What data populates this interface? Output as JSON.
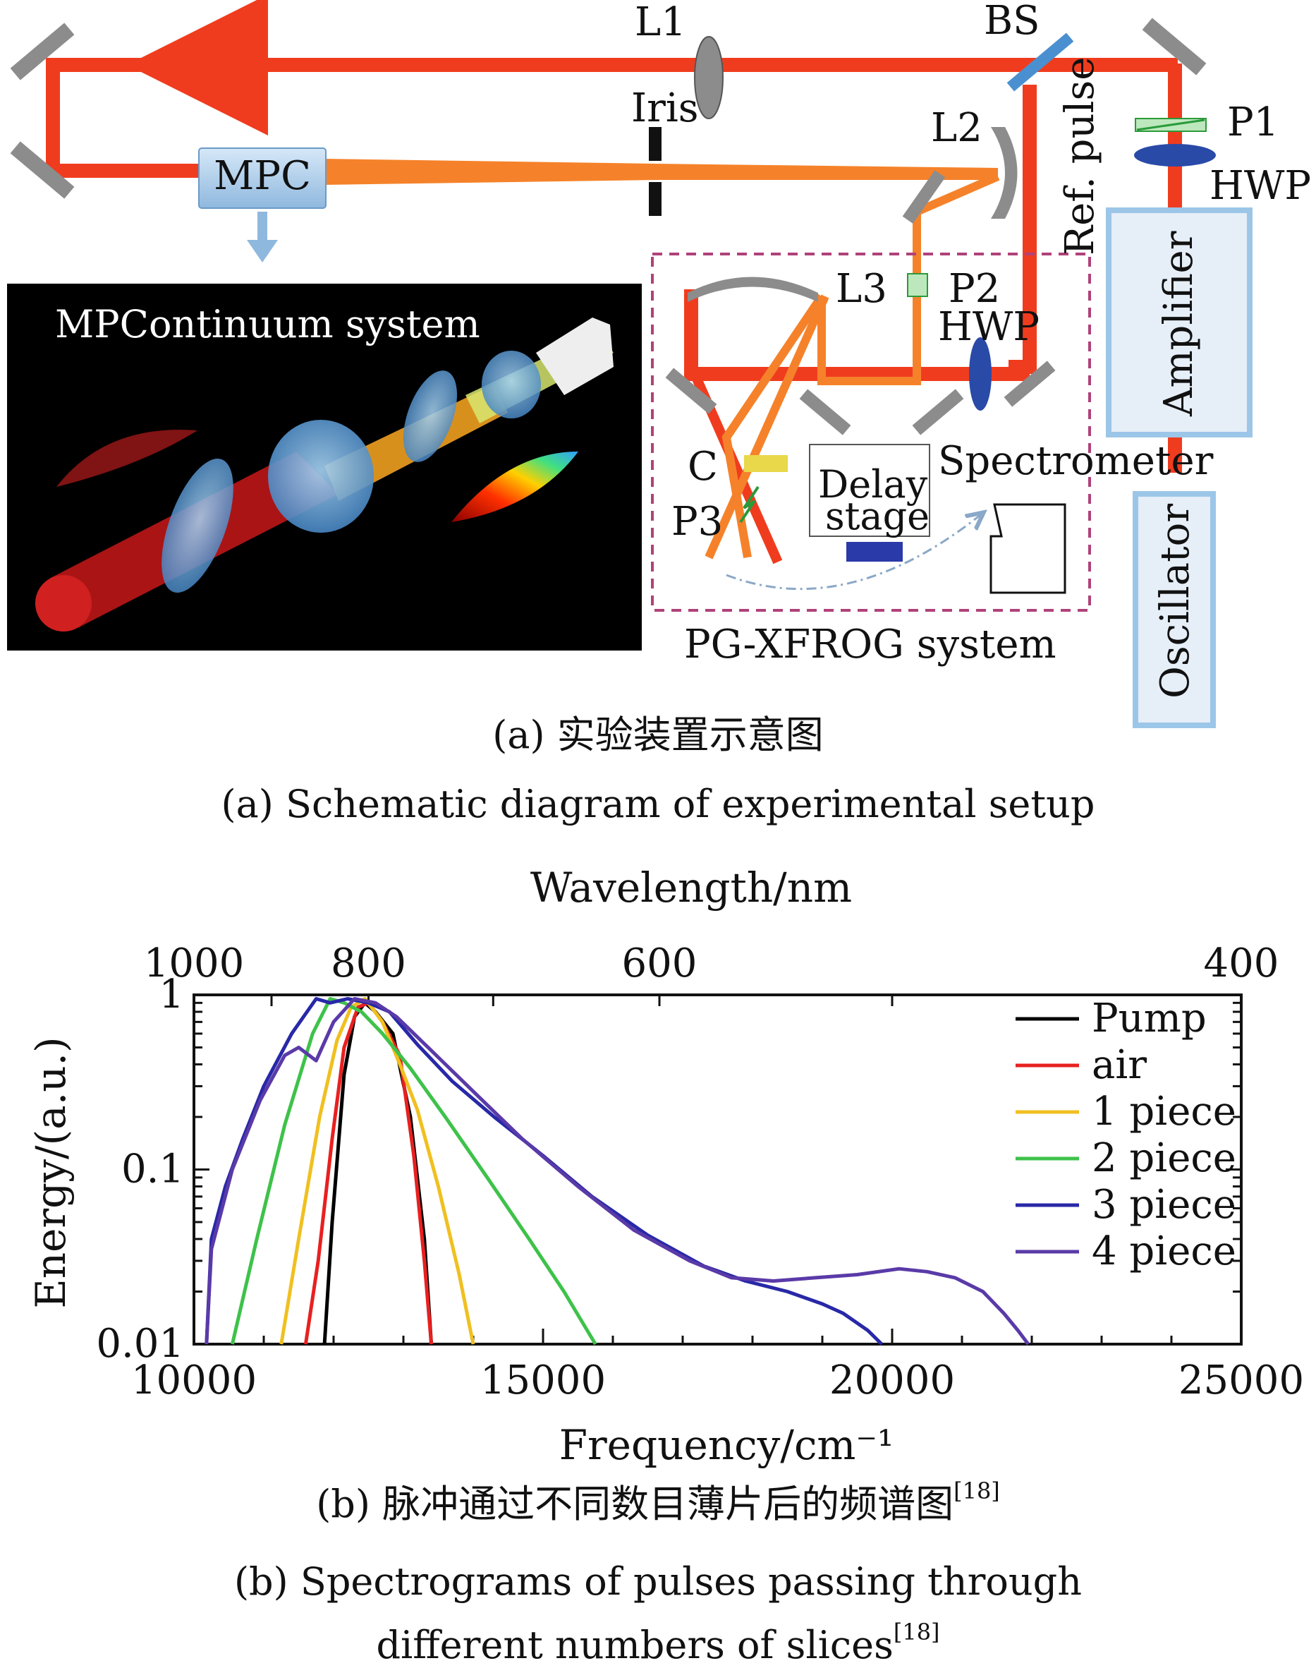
{
  "setup": {
    "labels": {
      "l1": "L1",
      "bs": "BS",
      "iris": "Iris",
      "p1": "P1",
      "l2": "L2",
      "hwp_top": "HWP",
      "mpc": "MPC",
      "ref_pulse": "Ref. pulse",
      "amplifier": "Amplifier",
      "l3": "L3",
      "p2": "P2",
      "hwp_mid": "HWP",
      "c": "C",
      "p3": "P3",
      "delay_line1": "Delay",
      "delay_line2": "stage",
      "spectrometer": "Spectrometer",
      "oscillator": "Oscillator",
      "pgxfrog": "PG-XFROG system",
      "mpcontinuum": "MPContinuum system"
    },
    "colors": {
      "beam_red": "#f03c1e",
      "beam_orange": "#f5822a",
      "mirror": "#8c8c8c",
      "optic_blue": "#3a66c8",
      "box_blue": "#9cc6e8",
      "inset_bg": "#000000",
      "frame_dashed": "#b0427a"
    }
  },
  "caption_a": {
    "zh": "(a) 实验装置示意图",
    "en": "(a) Schematic diagram of experimental setup"
  },
  "caption_b": {
    "zh": "(b) 脉冲通过不同数目薄片后的频谱图",
    "en_line1": "(b) Spectrograms of pulses passing through",
    "en_line2": "different numbers of slices",
    "ref": "[18]"
  },
  "chart_data": {
    "type": "line",
    "xlabel": "Frequency/cm⁻¹",
    "ylabel": "Energy/(a.u.)",
    "top_axis_label": "Wavelength/nm",
    "y_scale": "log",
    "xlim": [
      10000,
      25000
    ],
    "ylim": [
      0.01,
      1
    ],
    "x_ticks": [
      "10000",
      "15000",
      "20000",
      "25000"
    ],
    "y_ticks": [
      "0.01",
      "0.1",
      "1"
    ],
    "top_ticks": [
      {
        "label": "1000",
        "value": 1000
      },
      {
        "label": "800",
        "value": 800
      },
      {
        "label": "600",
        "value": 600
      },
      {
        "label": "400",
        "value": 400
      }
    ],
    "legend_position": "top-right",
    "series": [
      {
        "name": "Pump",
        "color": "#000000",
        "x": [
          11870,
          11980,
          12150,
          12300,
          12450,
          12600,
          12850,
          13100,
          13300,
          13400
        ],
        "y": [
          0.01,
          0.05,
          0.35,
          0.75,
          0.9,
          0.8,
          0.6,
          0.2,
          0.04,
          0.01
        ]
      },
      {
        "name": "air",
        "color": "#e82020",
        "x": [
          11600,
          11780,
          11980,
          12150,
          12350,
          12500,
          12700,
          12950,
          13150,
          13300,
          13400
        ],
        "y": [
          0.01,
          0.03,
          0.15,
          0.5,
          0.85,
          0.9,
          0.7,
          0.45,
          0.12,
          0.03,
          0.01
        ]
      },
      {
        "name": "1 piece",
        "color": "#f0c020",
        "x": [
          11250,
          11500,
          11800,
          12050,
          12250,
          12450,
          12700,
          12950,
          13200,
          13500,
          13800,
          14000
        ],
        "y": [
          0.01,
          0.04,
          0.2,
          0.55,
          0.85,
          0.95,
          0.7,
          0.4,
          0.22,
          0.08,
          0.025,
          0.01
        ]
      },
      {
        "name": "2 piece",
        "color": "#3ec24a",
        "x": [
          10550,
          10900,
          11300,
          11700,
          11950,
          12150,
          12400,
          12700,
          13100,
          13600,
          14200,
          14800,
          15300,
          15750
        ],
        "y": [
          0.01,
          0.04,
          0.18,
          0.6,
          0.95,
          0.9,
          0.8,
          0.6,
          0.38,
          0.2,
          0.09,
          0.04,
          0.02,
          0.01
        ]
      },
      {
        "name": "3 piece",
        "color": "#2828a8",
        "x": [
          10180,
          10250,
          10450,
          10700,
          11000,
          11400,
          11750,
          11950,
          12200,
          12500,
          12800,
          13200,
          13700,
          14300,
          15000,
          15700,
          16500,
          17300,
          17900,
          18500,
          19000,
          19300,
          19650,
          19850
        ],
        "y": [
          0.01,
          0.04,
          0.08,
          0.15,
          0.3,
          0.6,
          0.95,
          0.9,
          0.95,
          0.9,
          0.8,
          0.52,
          0.32,
          0.2,
          0.12,
          0.07,
          0.042,
          0.028,
          0.023,
          0.02,
          0.017,
          0.015,
          0.012,
          0.01
        ]
      },
      {
        "name": "4 piece",
        "color": "#5a3aa8",
        "x": [
          10180,
          10250,
          10550,
          10950,
          11300,
          11500,
          11750,
          12000,
          12300,
          12600,
          12900,
          13400,
          14000,
          14700,
          15500,
          16300,
          17100,
          17700,
          18300,
          18900,
          19500,
          20100,
          20500,
          20900,
          21300,
          21600,
          21800,
          21950
        ],
        "y": [
          0.01,
          0.035,
          0.1,
          0.25,
          0.45,
          0.5,
          0.42,
          0.7,
          0.95,
          0.9,
          0.75,
          0.48,
          0.28,
          0.15,
          0.08,
          0.045,
          0.03,
          0.024,
          0.023,
          0.024,
          0.025,
          0.027,
          0.026,
          0.024,
          0.02,
          0.015,
          0.012,
          0.01
        ]
      }
    ]
  }
}
